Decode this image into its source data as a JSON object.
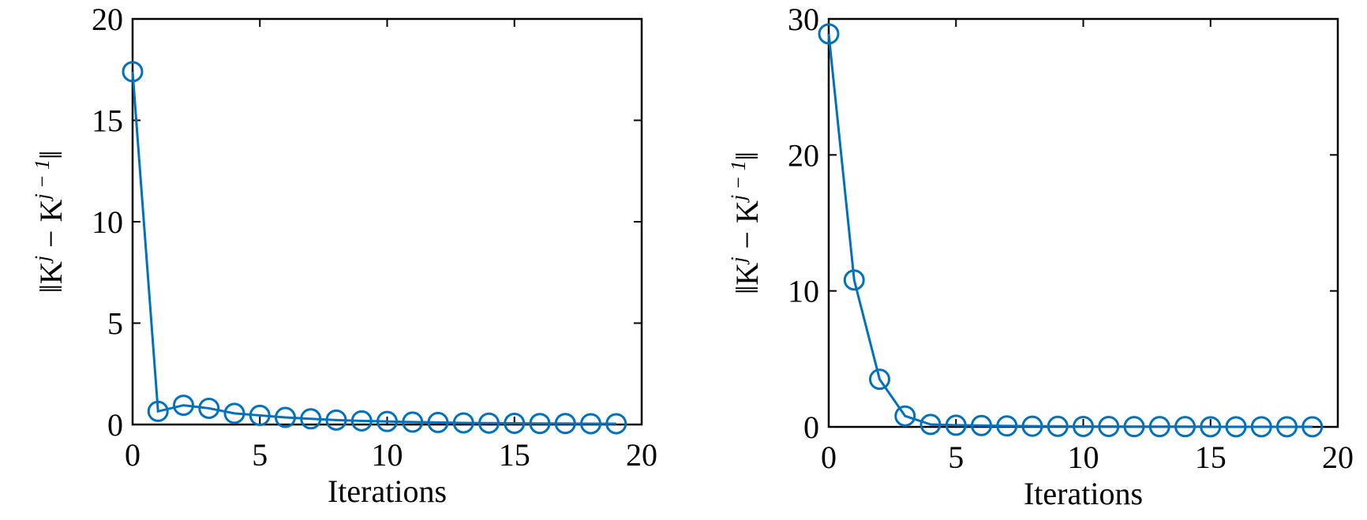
{
  "colors": {
    "series": "#0072BD",
    "axis": "#000000",
    "background": "#ffffff"
  },
  "chart_data": [
    {
      "type": "line",
      "marker": "circle",
      "xlabel": "Iterations",
      "ylabel_parts": [
        "‖K",
        "j",
        " − K",
        "j − 1",
        "‖"
      ],
      "xlim": [
        0,
        20
      ],
      "ylim": [
        0,
        20
      ],
      "xticks": [
        0,
        5,
        10,
        15,
        20
      ],
      "yticks": [
        0,
        5,
        10,
        15,
        20
      ],
      "grid": false,
      "box": true,
      "x": [
        0,
        1,
        2,
        3,
        4,
        5,
        6,
        7,
        8,
        9,
        10,
        11,
        12,
        13,
        14,
        15,
        16,
        17,
        18,
        19
      ],
      "series": [
        {
          "values": [
            17.4,
            0.65,
            0.95,
            0.8,
            0.55,
            0.45,
            0.35,
            0.28,
            0.22,
            0.18,
            0.15,
            0.12,
            0.1,
            0.08,
            0.07,
            0.06,
            0.05,
            0.05,
            0.04,
            0.04
          ]
        }
      ]
    },
    {
      "type": "line",
      "marker": "circle",
      "xlabel": "Iterations",
      "ylabel_parts": [
        "‖K",
        "j",
        " − K",
        "j − 1",
        "‖"
      ],
      "xlim": [
        0,
        20
      ],
      "ylim": [
        0,
        30
      ],
      "xticks": [
        0,
        5,
        10,
        15,
        20
      ],
      "yticks": [
        0,
        10,
        20,
        30
      ],
      "grid": false,
      "box": true,
      "x": [
        0,
        1,
        2,
        3,
        4,
        5,
        6,
        7,
        8,
        9,
        10,
        11,
        12,
        13,
        14,
        15,
        16,
        17,
        18,
        19
      ],
      "series": [
        {
          "values": [
            28.9,
            10.8,
            3.5,
            0.8,
            0.18,
            0.12,
            0.1,
            0.07,
            0.05,
            0.04,
            0.03,
            0.03,
            0.02,
            0.02,
            0.02,
            0.01,
            0.01,
            0.01,
            0.01,
            0.01
          ]
        }
      ]
    }
  ]
}
